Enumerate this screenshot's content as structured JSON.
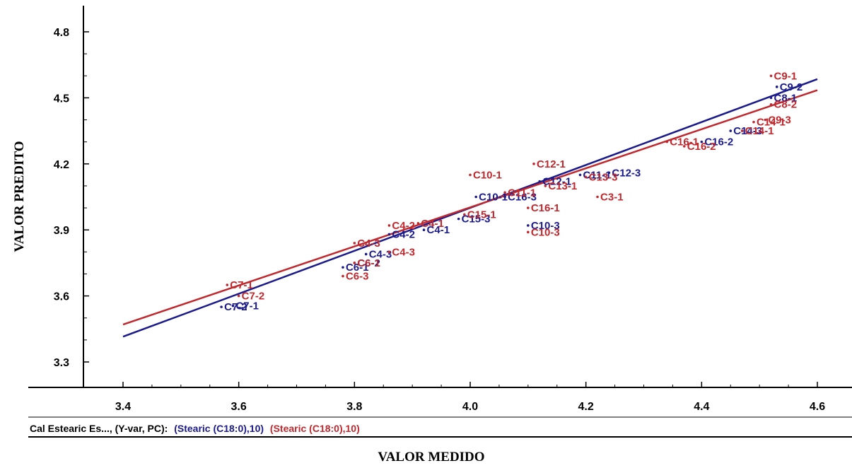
{
  "chart_data": {
    "type": "scatter",
    "xlabel": "VALOR MEDIDO",
    "ylabel": "VALOR PREDITO",
    "xlim": [
      3.34,
      4.65
    ],
    "ylim": [
      3.2,
      4.87
    ],
    "xticks": [
      "3.4",
      "3.6",
      "3.8",
      "4.0",
      "4.2",
      "4.4",
      "4.6"
    ],
    "yticks": [
      "3.3",
      "3.6",
      "3.9",
      "4.2",
      "4.5",
      "4.8"
    ],
    "caption": {
      "prefix": "Cal Estearic Es..., (Y-var, PC):",
      "series_labels": [
        "(Stearic (C18:0),10)",
        "(Stearic (C18:0),10)"
      ]
    },
    "series": [
      {
        "color": "#1a1a8c",
        "fit_line": [
          [
            3.4,
            3.415
          ],
          [
            4.6,
            4.585
          ]
        ],
        "points": [
          {
            "x": 3.57,
            "y": 3.55,
            "label": "C7-2"
          },
          {
            "x": 3.59,
            "y": 3.555,
            "label": "C7-1"
          },
          {
            "x": 3.78,
            "y": 3.73,
            "label": "C6-1"
          },
          {
            "x": 3.8,
            "y": 3.75,
            "label": "C6-2"
          },
          {
            "x": 3.82,
            "y": 3.79,
            "label": "C4-3"
          },
          {
            "x": 3.86,
            "y": 3.88,
            "label": "C4-2"
          },
          {
            "x": 3.92,
            "y": 3.9,
            "label": "C4-1"
          },
          {
            "x": 3.98,
            "y": 3.95,
            "label": "C15-3"
          },
          {
            "x": 4.01,
            "y": 4.05,
            "label": "C10-1"
          },
          {
            "x": 4.06,
            "y": 4.05,
            "label": "C16-3"
          },
          {
            "x": 4.1,
            "y": 3.92,
            "label": "C10-3"
          },
          {
            "x": 4.12,
            "y": 4.12,
            "label": "C12-1"
          },
          {
            "x": 4.19,
            "y": 4.15,
            "label": "C11-1"
          },
          {
            "x": 4.24,
            "y": 4.16,
            "label": "C12-3"
          },
          {
            "x": 4.4,
            "y": 4.3,
            "label": "C16-2"
          },
          {
            "x": 4.45,
            "y": 4.35,
            "label": "C14-3"
          },
          {
            "x": 4.52,
            "y": 4.5,
            "label": "C8-1"
          },
          {
            "x": 4.53,
            "y": 4.55,
            "label": "C9-2"
          }
        ]
      },
      {
        "color": "#c0282d",
        "fit_line": [
          [
            3.4,
            3.47
          ],
          [
            4.6,
            4.535
          ]
        ],
        "points": [
          {
            "x": 3.58,
            "y": 3.65,
            "label": "C7-1"
          },
          {
            "x": 3.6,
            "y": 3.6,
            "label": "C7-2"
          },
          {
            "x": 3.78,
            "y": 3.69,
            "label": "C6-3"
          },
          {
            "x": 3.8,
            "y": 3.75,
            "label": "C6-1"
          },
          {
            "x": 3.8,
            "y": 3.84,
            "label": "C4-3"
          },
          {
            "x": 3.86,
            "y": 3.8,
            "label": "C4-3"
          },
          {
            "x": 3.86,
            "y": 3.92,
            "label": "C4-2"
          },
          {
            "x": 3.91,
            "y": 3.93,
            "label": "C4-1"
          },
          {
            "x": 3.99,
            "y": 3.97,
            "label": "C15-1"
          },
          {
            "x": 4.0,
            "y": 4.15,
            "label": "C10-1"
          },
          {
            "x": 4.06,
            "y": 4.07,
            "label": "C11-1"
          },
          {
            "x": 4.1,
            "y": 3.89,
            "label": "C10-3"
          },
          {
            "x": 4.1,
            "y": 4.0,
            "label": "C16-1"
          },
          {
            "x": 4.11,
            "y": 4.2,
            "label": "C12-1"
          },
          {
            "x": 4.13,
            "y": 4.1,
            "label": "C13-1"
          },
          {
            "x": 4.2,
            "y": 4.14,
            "label": "C13-3"
          },
          {
            "x": 4.22,
            "y": 4.05,
            "label": "C3-1"
          },
          {
            "x": 4.34,
            "y": 4.3,
            "label": "C16-1"
          },
          {
            "x": 4.37,
            "y": 4.28,
            "label": "C16-2"
          },
          {
            "x": 4.47,
            "y": 4.35,
            "label": "C14-1"
          },
          {
            "x": 4.49,
            "y": 4.39,
            "label": "C14-1"
          },
          {
            "x": 4.51,
            "y": 4.4,
            "label": "C9-3"
          },
          {
            "x": 4.52,
            "y": 4.47,
            "label": "C8-2"
          },
          {
            "x": 4.52,
            "y": 4.6,
            "label": "C9-1"
          }
        ]
      }
    ]
  }
}
